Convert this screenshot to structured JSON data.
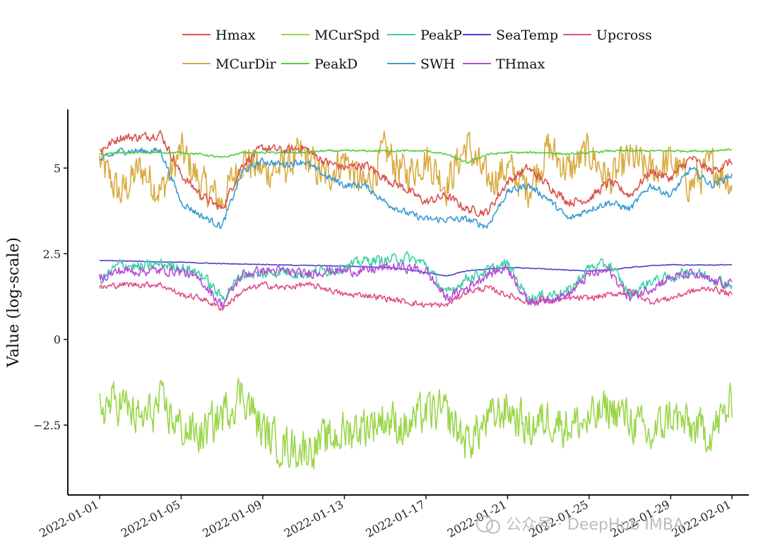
{
  "chart_data": {
    "type": "line",
    "title": "",
    "xlabel": "",
    "ylabel": "Value (log-scale)",
    "ylim": [
      -4.5,
      6.7
    ],
    "yticks": [
      5,
      2.5,
      0,
      -2.5
    ],
    "ytick_labels": [
      "5",
      "2.5",
      "0",
      "−2.5"
    ],
    "xlim": [
      "2022-01-01",
      "2022-02-01"
    ],
    "xticks": [
      "2022-01-01",
      "2022-01-05",
      "2022-01-09",
      "2022-01-13",
      "2022-01-17",
      "2022-01-21",
      "2022-01-25",
      "2022-01-29",
      "2022-02-01"
    ],
    "grid": false,
    "legend_position": "top",
    "series": [
      {
        "name": "Hmax",
        "color": "#d9534f",
        "x": [
          0,
          1,
          2,
          3,
          4,
          5,
          6,
          7,
          8,
          9,
          10,
          11,
          12,
          13,
          14,
          15,
          16,
          17,
          18,
          19,
          20,
          21,
          22,
          23,
          24,
          25,
          26,
          27,
          28,
          29,
          30,
          31
        ],
        "values": [
          5.5,
          5.9,
          5.9,
          6.0,
          4.8,
          4.2,
          3.8,
          5.1,
          5.6,
          5.5,
          5.6,
          5.2,
          5.0,
          5.1,
          4.7,
          4.4,
          4.0,
          4.2,
          3.8,
          3.7,
          4.6,
          5.0,
          4.5,
          4.0,
          4.1,
          4.6,
          4.2,
          4.9,
          4.7,
          5.3,
          4.9,
          5.2
        ]
      },
      {
        "name": "MCurSpd",
        "color": "#9bd64b",
        "x": [
          0,
          1,
          2,
          3,
          4,
          5,
          6,
          7,
          8,
          9,
          10,
          11,
          12,
          13,
          14,
          15,
          16,
          17,
          18,
          19,
          20,
          21,
          22,
          23,
          24,
          25,
          26,
          27,
          28,
          29,
          30,
          31
        ],
        "values": [
          -2.0,
          -1.8,
          -2.4,
          -1.9,
          -2.6,
          -2.8,
          -2.2,
          -1.5,
          -2.7,
          -3.1,
          -3.2,
          -3.0,
          -2.7,
          -2.5,
          -2.3,
          -2.6,
          -2.1,
          -2.2,
          -3.0,
          -2.4,
          -2.0,
          -2.6,
          -2.3,
          -2.5,
          -2.4,
          -2.0,
          -2.3,
          -2.9,
          -2.2,
          -2.6,
          -2.7,
          -1.9
        ]
      },
      {
        "name": "PeakP",
        "color": "#3fd1a5",
        "x": [
          0,
          1,
          2,
          3,
          4,
          5,
          6,
          7,
          8,
          9,
          10,
          11,
          12,
          13,
          14,
          15,
          16,
          17,
          18,
          19,
          20,
          21,
          22,
          23,
          24,
          25,
          26,
          27,
          28,
          29,
          30,
          31
        ],
        "values": [
          1.7,
          2.2,
          2.1,
          2.2,
          2.1,
          1.9,
          1.2,
          1.9,
          1.9,
          2.0,
          1.9,
          2.0,
          2.1,
          2.3,
          2.3,
          2.4,
          2.2,
          1.3,
          1.8,
          2.0,
          2.2,
          1.2,
          1.3,
          1.4,
          2.1,
          2.2,
          1.3,
          1.7,
          1.8,
          2.0,
          1.8,
          1.6
        ]
      },
      {
        "name": "SeaTemp",
        "color": "#4a3fcf",
        "x": [
          0,
          1,
          2,
          3,
          4,
          5,
          6,
          7,
          8,
          9,
          10,
          11,
          12,
          13,
          14,
          15,
          16,
          17,
          18,
          19,
          20,
          21,
          22,
          23,
          24,
          25,
          26,
          27,
          28,
          29,
          30,
          31
        ],
        "values": [
          2.3,
          2.29,
          2.28,
          2.26,
          2.25,
          2.23,
          2.21,
          2.2,
          2.19,
          2.17,
          2.16,
          2.15,
          2.14,
          2.12,
          2.1,
          2.05,
          1.95,
          1.85,
          2.0,
          2.05,
          2.1,
          2.08,
          2.05,
          2.02,
          2.0,
          2.02,
          2.1,
          2.15,
          2.18,
          2.17,
          2.17,
          2.18
        ]
      },
      {
        "name": "Upcross",
        "color": "#e0508a",
        "x": [
          0,
          1,
          2,
          3,
          4,
          5,
          6,
          7,
          8,
          9,
          10,
          11,
          12,
          13,
          14,
          15,
          16,
          17,
          18,
          19,
          20,
          21,
          22,
          23,
          24,
          25,
          26,
          27,
          28,
          29,
          30,
          31
        ],
        "values": [
          1.5,
          1.6,
          1.6,
          1.6,
          1.3,
          1.2,
          0.9,
          1.4,
          1.6,
          1.5,
          1.6,
          1.5,
          1.3,
          1.3,
          1.2,
          1.1,
          1.0,
          1.0,
          1.4,
          1.5,
          1.3,
          1.1,
          1.1,
          1.2,
          1.2,
          1.3,
          1.4,
          1.1,
          1.2,
          1.4,
          1.5,
          1.3
        ]
      },
      {
        "name": "MCurDir",
        "color": "#d9ab42",
        "x": [
          0,
          1,
          2,
          3,
          4,
          5,
          6,
          7,
          8,
          9,
          10,
          11,
          12,
          13,
          14,
          15,
          16,
          17,
          18,
          19,
          20,
          21,
          22,
          23,
          24,
          25,
          26,
          27,
          28,
          29,
          30,
          31
        ],
        "values": [
          5.2,
          4.2,
          5.0,
          4.3,
          5.5,
          4.5,
          4.0,
          5.3,
          4.9,
          5.0,
          5.4,
          4.7,
          5.3,
          4.4,
          5.5,
          4.8,
          5.3,
          4.5,
          5.7,
          4.6,
          5.0,
          4.4,
          5.6,
          4.9,
          5.5,
          4.6,
          5.3,
          4.9,
          5.2,
          4.5,
          5.1,
          4.6
        ]
      },
      {
        "name": "PeakD",
        "color": "#55cc3a",
        "x": [
          0,
          1,
          2,
          3,
          4,
          5,
          6,
          7,
          8,
          9,
          10,
          11,
          12,
          13,
          14,
          15,
          16,
          17,
          18,
          19,
          20,
          21,
          22,
          23,
          24,
          25,
          26,
          27,
          28,
          29,
          30,
          31
        ],
        "values": [
          5.4,
          5.45,
          5.45,
          5.45,
          5.45,
          5.4,
          5.3,
          5.45,
          5.45,
          5.45,
          5.45,
          5.5,
          5.5,
          5.5,
          5.5,
          5.5,
          5.5,
          5.4,
          5.15,
          5.4,
          5.45,
          5.45,
          5.45,
          5.4,
          5.45,
          5.5,
          5.5,
          5.5,
          5.5,
          5.5,
          5.5,
          5.55
        ]
      },
      {
        "name": "SWH",
        "color": "#3b9cd1",
        "x": [
          0,
          1,
          2,
          3,
          4,
          5,
          6,
          7,
          8,
          9,
          10,
          11,
          12,
          13,
          14,
          15,
          16,
          17,
          18,
          19,
          20,
          21,
          22,
          23,
          24,
          25,
          26,
          27,
          28,
          29,
          30,
          31
        ],
        "values": [
          5.2,
          5.5,
          5.5,
          5.5,
          4.0,
          3.6,
          3.3,
          4.9,
          5.2,
          5.1,
          5.2,
          4.8,
          4.5,
          4.5,
          4.0,
          3.7,
          3.5,
          3.5,
          3.5,
          3.3,
          4.3,
          4.5,
          4.1,
          3.5,
          3.8,
          4.0,
          3.8,
          4.5,
          4.2,
          5.0,
          4.5,
          4.8
        ]
      },
      {
        "name": "THmax",
        "color": "#b34fd9",
        "x": [
          0,
          1,
          2,
          3,
          4,
          5,
          6,
          7,
          8,
          9,
          10,
          11,
          12,
          13,
          14,
          15,
          16,
          17,
          18,
          19,
          20,
          21,
          22,
          23,
          24,
          25,
          26,
          27,
          28,
          29,
          30,
          31
        ],
        "values": [
          1.8,
          2.0,
          2.0,
          2.0,
          2.0,
          1.7,
          1.0,
          1.9,
          2.0,
          2.0,
          1.9,
          2.0,
          2.0,
          2.0,
          2.1,
          2.1,
          2.0,
          1.2,
          1.5,
          1.9,
          2.1,
          1.1,
          1.2,
          1.3,
          1.9,
          2.0,
          1.2,
          1.5,
          1.8,
          1.9,
          1.7,
          1.6
        ]
      }
    ],
    "legend": {
      "row1": [
        "Hmax",
        "MCurSpd",
        "PeakP",
        "SeaTemp",
        "Upcross"
      ],
      "row2": [
        "MCurDir",
        "PeakD",
        "SWH",
        "THmax"
      ]
    }
  },
  "watermark": "公众号 · DeepHub IMBA"
}
